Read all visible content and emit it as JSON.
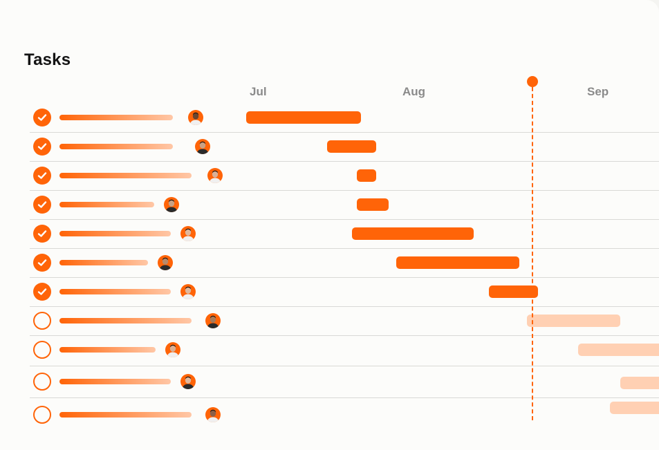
{
  "title": "Tasks",
  "months": [
    "Jul",
    "Aug",
    "Sep"
  ],
  "colors": {
    "accent": "#ff6408",
    "upcoming": "#ffd0b3",
    "month_label": "#8a8a8a"
  },
  "today_marker": true,
  "tasks": [
    {
      "completed": true,
      "status": "done"
    },
    {
      "completed": true,
      "status": "done"
    },
    {
      "completed": true,
      "status": "done"
    },
    {
      "completed": true,
      "status": "done"
    },
    {
      "completed": true,
      "status": "done"
    },
    {
      "completed": true,
      "status": "done"
    },
    {
      "completed": true,
      "status": "done"
    },
    {
      "completed": false,
      "status": "upcoming"
    },
    {
      "completed": false,
      "status": "upcoming"
    },
    {
      "completed": false,
      "status": "upcoming"
    },
    {
      "completed": false,
      "status": "upcoming"
    }
  ]
}
